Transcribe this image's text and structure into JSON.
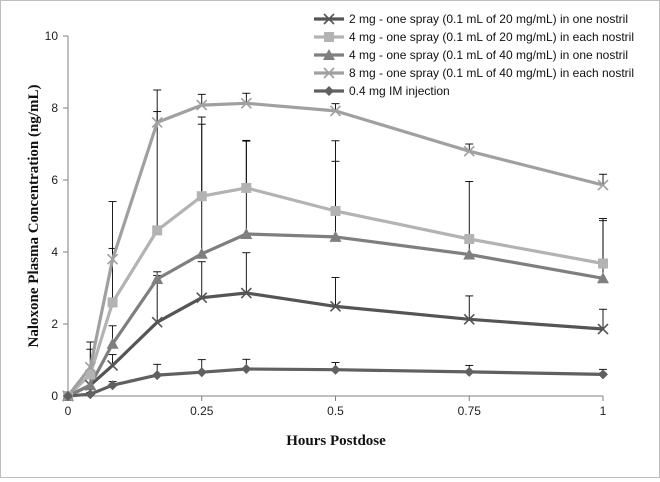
{
  "chart_data": {
    "type": "line",
    "title": "",
    "xlabel": "Hours Postdose",
    "ylabel": "Naloxone Plasma Concentration (ng/mL)",
    "xlim": [
      0,
      1
    ],
    "ylim": [
      0,
      10
    ],
    "x_ticks": [
      0,
      0.25,
      0.5,
      0.75,
      1
    ],
    "x_tick_labels": [
      "0",
      "0.25",
      "0.5",
      "0.75",
      "1"
    ],
    "y_ticks": [
      0,
      2,
      4,
      6,
      8,
      10
    ],
    "y_tick_labels": [
      "0",
      "2",
      "4",
      "6",
      "8",
      "10"
    ],
    "grid": false,
    "legend_position": "top-right",
    "x": [
      0,
      0.0417,
      0.0833,
      0.1667,
      0.25,
      0.3333,
      0.5,
      0.75,
      1
    ],
    "series": [
      {
        "name": "2 mg - one spray (0.1 mL of 20 mg/mL) in one nostril",
        "marker": "x",
        "color": "#555555",
        "values": [
          0,
          0.3,
          0.85,
          2.05,
          2.73,
          2.86,
          2.49,
          2.13,
          1.86
        ],
        "errors": [
          0,
          0.25,
          0.3,
          1.3,
          1.0,
          1.12,
          0.8,
          0.65,
          0.55
        ]
      },
      {
        "name": "4 mg - one spray (0.1 mL of 20 mg/mL) in each nostril",
        "marker": "square",
        "color": "#b3b3b3",
        "values": [
          0,
          0.6,
          2.6,
          4.6,
          5.55,
          5.78,
          5.14,
          4.36,
          3.68
        ],
        "errors": [
          0,
          0.7,
          1.5,
          3.3,
          2.2,
          1.3,
          1.95,
          1.6,
          1.25
        ]
      },
      {
        "name": "4 mg - one spray (0.1 mL of 40 mg/mL) in one nostril",
        "marker": "triangle",
        "color": "#7f7f7f",
        "values": [
          0,
          0.3,
          1.45,
          3.25,
          3.95,
          4.5,
          4.42,
          3.93,
          3.27
        ],
        "errors": [
          0,
          0.2,
          0.5,
          0.2,
          3.6,
          2.6,
          2.1,
          0.4,
          1.6
        ]
      },
      {
        "name": "8 mg - one spray (0.1 mL of 40 mg/mL) in each nostril",
        "marker": "x",
        "color": "#a0a0a0",
        "values": [
          0,
          0.8,
          3.8,
          7.6,
          8.08,
          8.13,
          7.92,
          6.8,
          5.86
        ],
        "errors": [
          0,
          0.7,
          1.6,
          0.9,
          0.3,
          0.28,
          0.2,
          0.2,
          0.3
        ]
      },
      {
        "name": "0.4 mg IM injection",
        "marker": "diamond",
        "color": "#606060",
        "values": [
          0,
          0.05,
          0.3,
          0.58,
          0.66,
          0.75,
          0.73,
          0.67,
          0.6
        ],
        "errors": [
          0,
          0.05,
          0.1,
          0.3,
          0.35,
          0.27,
          0.2,
          0.18,
          0.14
        ]
      }
    ]
  }
}
